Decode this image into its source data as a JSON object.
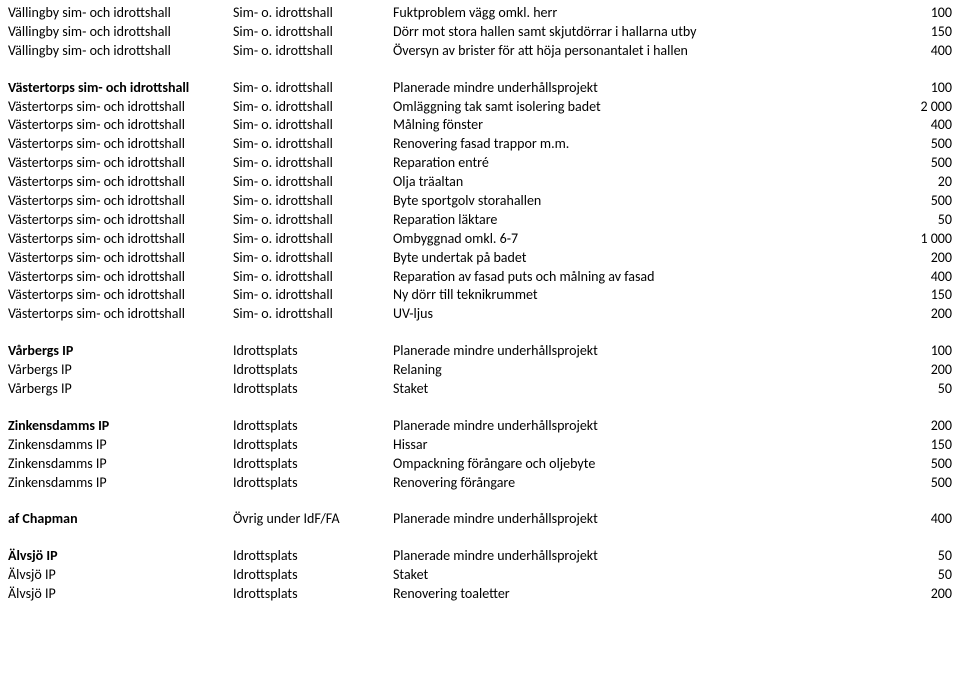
{
  "groups": [
    {
      "header": false,
      "rows": [
        {
          "a": "Vällingby sim- och idrottshall",
          "b": "Sim- o. idrottshall",
          "c": "Fuktproblem vägg omkl. herr",
          "d": "100"
        },
        {
          "a": "Vällingby sim- och idrottshall",
          "b": "Sim- o. idrottshall",
          "c": "Dörr mot stora hallen samt skjutdörrar i hallarna utby",
          "d": "150"
        },
        {
          "a": "Vällingby sim- och idrottshall",
          "b": "Sim- o. idrottshall",
          "c": "Översyn av brister för att höja personantalet i hallen",
          "d": "400"
        }
      ]
    },
    {
      "header": true,
      "headerRow": {
        "a": "Västertorps sim- och idrottshall",
        "b": "Sim- o. idrottshall",
        "c": "Planerade mindre underhållsprojekt",
        "d": "100"
      },
      "rows": [
        {
          "a": "Västertorps sim- och idrottshall",
          "b": "Sim- o. idrottshall",
          "c": "Omläggning tak samt isolering badet",
          "d": "2 000"
        },
        {
          "a": "Västertorps sim- och idrottshall",
          "b": "Sim- o. idrottshall",
          "c": "Målning fönster",
          "d": "400"
        },
        {
          "a": "Västertorps sim- och idrottshall",
          "b": "Sim- o. idrottshall",
          "c": "Renovering fasad trappor m.m.",
          "d": "500"
        },
        {
          "a": "Västertorps sim- och idrottshall",
          "b": "Sim- o. idrottshall",
          "c": "Reparation entré",
          "d": "500"
        },
        {
          "a": "Västertorps sim- och idrottshall",
          "b": "Sim- o. idrottshall",
          "c": "Olja träaltan",
          "d": "20"
        },
        {
          "a": "Västertorps sim- och idrottshall",
          "b": "Sim- o. idrottshall",
          "c": "Byte sportgolv storahallen",
          "d": "500"
        },
        {
          "a": "Västertorps sim- och idrottshall",
          "b": "Sim- o. idrottshall",
          "c": "Reparation läktare",
          "d": "50"
        },
        {
          "a": "Västertorps sim- och idrottshall",
          "b": "Sim- o. idrottshall",
          "c": "Ombyggnad omkl. 6-7",
          "d": "1 000"
        },
        {
          "a": "Västertorps sim- och idrottshall",
          "b": "Sim- o. idrottshall",
          "c": "Byte undertak på badet",
          "d": "200"
        },
        {
          "a": "Västertorps sim- och idrottshall",
          "b": "Sim- o. idrottshall",
          "c": "Reparation av fasad puts och målning av fasad",
          "d": "400"
        },
        {
          "a": "Västertorps sim- och idrottshall",
          "b": "Sim- o. idrottshall",
          "c": "Ny dörr till teknikrummet",
          "d": "150"
        },
        {
          "a": "Västertorps sim- och idrottshall",
          "b": "Sim- o. idrottshall",
          "c": "UV-ljus",
          "d": "200"
        }
      ]
    },
    {
      "header": true,
      "headerRow": {
        "a": "Vårbergs IP",
        "b": "Idrottsplats",
        "c": "Planerade mindre underhållsprojekt",
        "d": "100"
      },
      "rows": [
        {
          "a": "Vårbergs IP",
          "b": "Idrottsplats",
          "c": "Relaning",
          "d": "200"
        },
        {
          "a": "Vårbergs IP",
          "b": "Idrottsplats",
          "c": "Staket",
          "d": "50"
        }
      ]
    },
    {
      "header": true,
      "headerRow": {
        "a": "Zinkensdamms IP",
        "b": "Idrottsplats",
        "c": "Planerade mindre underhållsprojekt",
        "d": "200"
      },
      "rows": [
        {
          "a": "Zinkensdamms IP",
          "b": "Idrottsplats",
          "c": "Hissar",
          "d": "150"
        },
        {
          "a": "Zinkensdamms IP",
          "b": "Idrottsplats",
          "c": "Ompackning förångare och oljebyte",
          "d": "500"
        },
        {
          "a": "Zinkensdamms IP",
          "b": "Idrottsplats",
          "c": "Renovering förångare",
          "d": "500"
        }
      ]
    },
    {
      "header": true,
      "headerRow": {
        "a": "af Chapman",
        "b": "Övrig under IdF/FA",
        "c": "Planerade mindre underhållsprojekt",
        "d": "400"
      },
      "rows": []
    },
    {
      "header": true,
      "headerRow": {
        "a": "Älvsjö IP",
        "b": "Idrottsplats",
        "c": "Planerade mindre underhållsprojekt",
        "d": "50"
      },
      "rows": [
        {
          "a": "Älvsjö IP",
          "b": "Idrottsplats",
          "c": "Staket",
          "d": "50"
        },
        {
          "a": "Älvsjö IP",
          "b": "Idrottsplats",
          "c": "Renovering toaletter",
          "d": "200"
        }
      ]
    }
  ]
}
